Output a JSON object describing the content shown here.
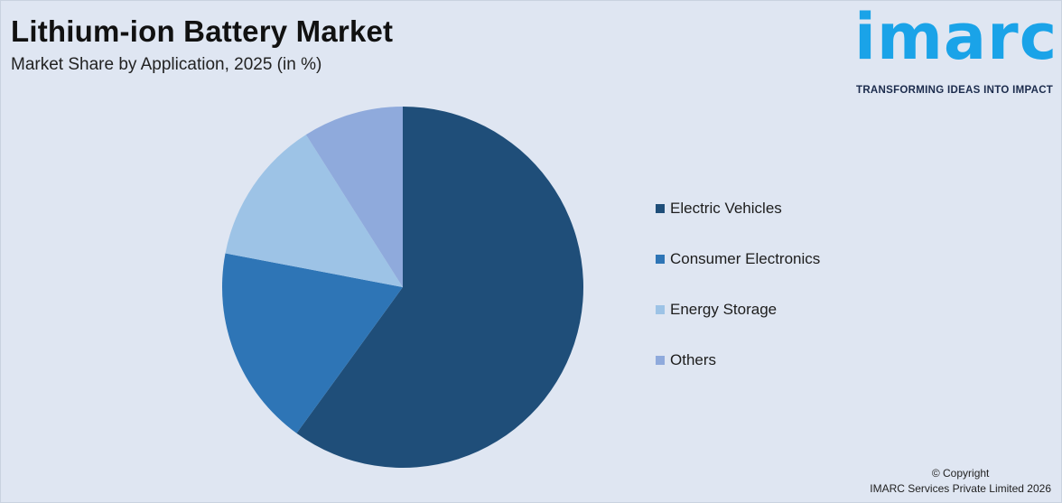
{
  "header": {
    "title": "Lithium-ion Battery Market",
    "subtitle": "Market Share by Application, 2025 (in %)"
  },
  "logo": {
    "word": "imarc",
    "tagline": "TRANSFORMING IDEAS INTO IMPACT",
    "color": "#1aa3e8"
  },
  "chart_data": {
    "type": "pie",
    "title": "Lithium-ion Battery Market",
    "subtitle": "Market Share by Application, 2025 (in %)",
    "categories": [
      "Electric Vehicles",
      "Consumer Electronics",
      "Energy Storage",
      "Others"
    ],
    "values": [
      60,
      18,
      13,
      9
    ],
    "colors": [
      "#1f4e79",
      "#2e75b6",
      "#9dc3e6",
      "#8faadc"
    ],
    "legend_position": "right",
    "start_angle": "top",
    "direction": "clockwise"
  },
  "footer": {
    "line1": "© Copyright",
    "line2": "IMARC Services Private Limited 2026"
  }
}
